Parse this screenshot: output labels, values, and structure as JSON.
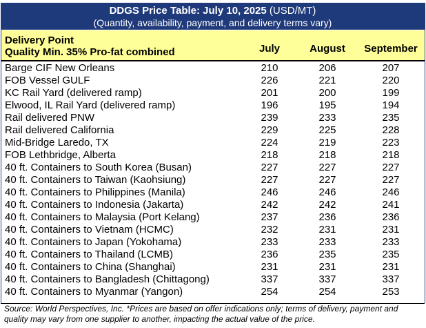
{
  "title": {
    "bold": "DDGS Price Table: July 10, 2025",
    "unit": "(USD/MT)",
    "subtitle": "(Quantity, availability, payment, and delivery terms vary)"
  },
  "header": {
    "left_line1": "Delivery Point",
    "left_line2": "Quality Min. 35% Pro-fat combined",
    "col1": "July",
    "col2": "August",
    "col3": "September"
  },
  "rows": [
    {
      "label": "Barge CIF New Orleans",
      "july": "210",
      "august": "206",
      "september": "207"
    },
    {
      "label": "FOB Vessel GULF",
      "july": "226",
      "august": "221",
      "september": "220"
    },
    {
      "label": "KC Rail Yard (delivered ramp)",
      "july": "201",
      "august": "200",
      "september": "199"
    },
    {
      "label": "Elwood, IL Rail Yard (delivered ramp)",
      "july": "196",
      "august": "195",
      "september": "194"
    },
    {
      "label": "Rail delivered PNW",
      "july": "239",
      "august": "233",
      "september": "235"
    },
    {
      "label": "Rail delivered California",
      "july": "229",
      "august": "225",
      "september": "228"
    },
    {
      "label": "Mid-Bridge Laredo, TX",
      "july": "224",
      "august": "219",
      "september": "223"
    },
    {
      "label": "FOB Lethbridge, Alberta",
      "july": "218",
      "august": "218",
      "september": "218"
    },
    {
      "label": "40 ft. Containers to South Korea (Busan)",
      "july": "227",
      "august": "227",
      "september": "227"
    },
    {
      "label": "40 ft. Containers to Taiwan (Kaohsiung)",
      "july": "227",
      "august": "227",
      "september": "227"
    },
    {
      "label": "40 ft. Containers to Philippines (Manila)",
      "july": "246",
      "august": "246",
      "september": "246"
    },
    {
      "label": "40 ft. Containers to Indonesia (Jakarta)",
      "july": "242",
      "august": "242",
      "september": "241"
    },
    {
      "label": "40 ft. Containers to Malaysia (Port Kelang)",
      "july": "237",
      "august": "236",
      "september": "236"
    },
    {
      "label": "40 ft. Containers to Vietnam (HCMC)",
      "july": "232",
      "august": "231",
      "september": "231"
    },
    {
      "label": "40 ft. Containers to Japan (Yokohama)",
      "july": "233",
      "august": "233",
      "september": "233"
    },
    {
      "label": "40 ft. Containers to Thailand (LCMB)",
      "july": "236",
      "august": "235",
      "september": "235"
    },
    {
      "label": "40 ft. Containers to China (Shanghai)",
      "july": "231",
      "august": "231",
      "september": "231"
    },
    {
      "label": "40 ft. Containers to Bangladesh (Chittagong)",
      "july": "337",
      "august": "337",
      "september": "337"
    },
    {
      "label": "40 ft. Containers to Myanmar (Yangon)",
      "july": "254",
      "august": "254",
      "september": "253"
    }
  ],
  "footer": "Source: World Perspectives, Inc. *Prices are based on offer indications only; terms of delivery, payment and quality may vary from one supplier to another, impacting the actual value of the price.",
  "colors": {
    "title_bg": "#1f3a7a",
    "header_bg": "#ffff99"
  }
}
